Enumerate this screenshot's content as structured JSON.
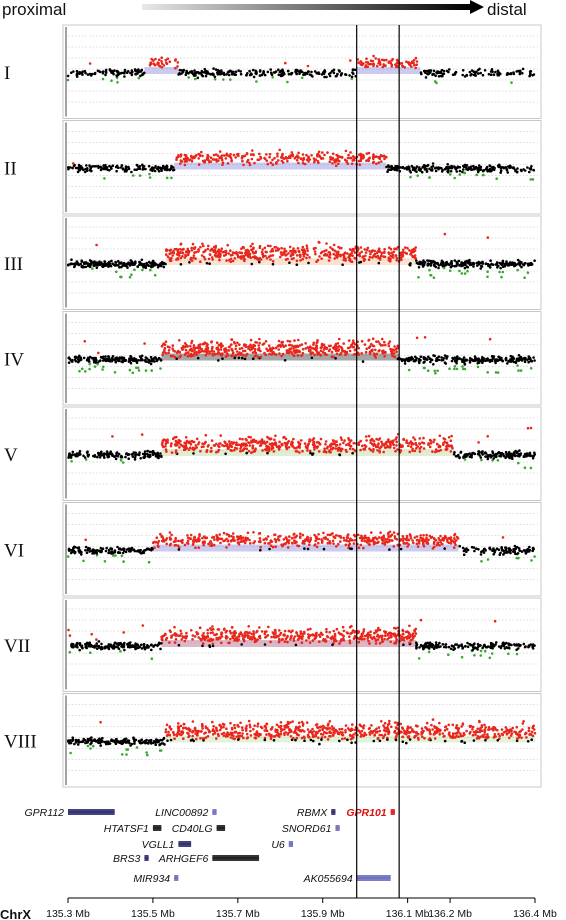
{
  "header": {
    "left_label": "proximal",
    "right_label": "distal"
  },
  "chart_data": {
    "type": "scatter",
    "chromosome_label": "ChrX",
    "x_ticks": [
      "135.3 Mb",
      "135.5 Mb",
      "135.7 Mb",
      "135.9 Mb",
      "136.1 Mb",
      "136.2 Mb",
      "136.4 Mb"
    ],
    "x_tick_values": [
      135.3,
      135.5,
      135.7,
      135.9,
      136.1,
      136.2,
      136.4
    ],
    "xlim": [
      135.3,
      136.4
    ],
    "vertical_markers_mb": [
      135.98,
      136.08
    ],
    "colors": {
      "gain": "#e8261b",
      "normal": "#000000",
      "loss": "#3aa82f"
    },
    "series": [
      {
        "name": "I",
        "gain_segments": [
          [
            135.48,
            135.56
          ],
          [
            135.98,
            136.13
          ]
        ],
        "band_color": "#6a6ad0",
        "density": 0.6
      },
      {
        "name": "II",
        "gain_segments": [
          [
            135.55,
            136.05
          ]
        ],
        "band_color": "#6a6ad0",
        "density": 0.7
      },
      {
        "name": "III",
        "gain_segments": [
          [
            135.53,
            136.12
          ]
        ],
        "band_color": "#f0b080",
        "density": 1.0
      },
      {
        "name": "IV",
        "gain_segments": [
          [
            135.52,
            136.08
          ]
        ],
        "band_color": "#000000",
        "density": 1.0
      },
      {
        "name": "V",
        "gain_segments": [
          [
            135.52,
            136.21
          ]
        ],
        "band_color": "#a8c878",
        "density": 0.9
      },
      {
        "name": "VI",
        "gain_segments": [
          [
            135.5,
            136.22
          ]
        ],
        "band_color": "#6a6ad0",
        "density": 0.8
      },
      {
        "name": "VII",
        "gain_segments": [
          [
            135.52,
            136.12
          ]
        ],
        "band_color": "#9a3060",
        "density": 0.9
      },
      {
        "name": "VIII",
        "gain_segments": [
          [
            135.53,
            136.4
          ]
        ],
        "band_color": "#b0d890",
        "density": 1.0
      }
    ],
    "genes": [
      {
        "name": "GPR112",
        "start": 135.3,
        "end": 135.41,
        "row": 0,
        "label_side": "left",
        "highlight": false,
        "color": "#22226a"
      },
      {
        "name": "LINC00892",
        "start": 135.64,
        "end": 135.65,
        "row": 0,
        "label_side": "left",
        "highlight": false,
        "color": "#6666bb"
      },
      {
        "name": "RBMX",
        "start": 135.92,
        "end": 135.93,
        "row": 0,
        "label_side": "left",
        "highlight": false,
        "color": "#22226a"
      },
      {
        "name": "GPR101",
        "start": 136.06,
        "end": 136.07,
        "row": 0,
        "label_side": "left",
        "highlight": true,
        "color": "#e01010"
      },
      {
        "name": "HTATSF1",
        "start": 135.5,
        "end": 135.52,
        "row": 1,
        "label_side": "left",
        "highlight": false,
        "color": "#111111"
      },
      {
        "name": "CD40LG",
        "start": 135.65,
        "end": 135.67,
        "row": 1,
        "label_side": "left",
        "highlight": false,
        "color": "#111111"
      },
      {
        "name": "SNORD61",
        "start": 135.93,
        "end": 135.94,
        "row": 1,
        "label_side": "left",
        "highlight": false,
        "color": "#6666bb"
      },
      {
        "name": "VGLL1",
        "start": 135.56,
        "end": 135.59,
        "row": 2,
        "label_side": "left",
        "highlight": false,
        "color": "#22226a"
      },
      {
        "name": "U6",
        "start": 135.82,
        "end": 135.83,
        "row": 2,
        "label_side": "left",
        "highlight": false,
        "color": "#6666bb"
      },
      {
        "name": "BRS3",
        "start": 135.48,
        "end": 135.49,
        "row": 3,
        "label_side": "left",
        "highlight": false,
        "color": "#22226a"
      },
      {
        "name": "ARHGEF6",
        "start": 135.64,
        "end": 135.75,
        "row": 3,
        "label_side": "left",
        "highlight": false,
        "color": "#111111"
      },
      {
        "name": "MIR934",
        "start": 135.55,
        "end": 135.56,
        "row": 4,
        "label_side": "left",
        "highlight": false,
        "color": "#6666bb"
      },
      {
        "name": "AK055694",
        "start": 135.98,
        "end": 136.06,
        "row": 4,
        "label_side": "left",
        "highlight": false,
        "color": "#6666bb"
      }
    ]
  }
}
